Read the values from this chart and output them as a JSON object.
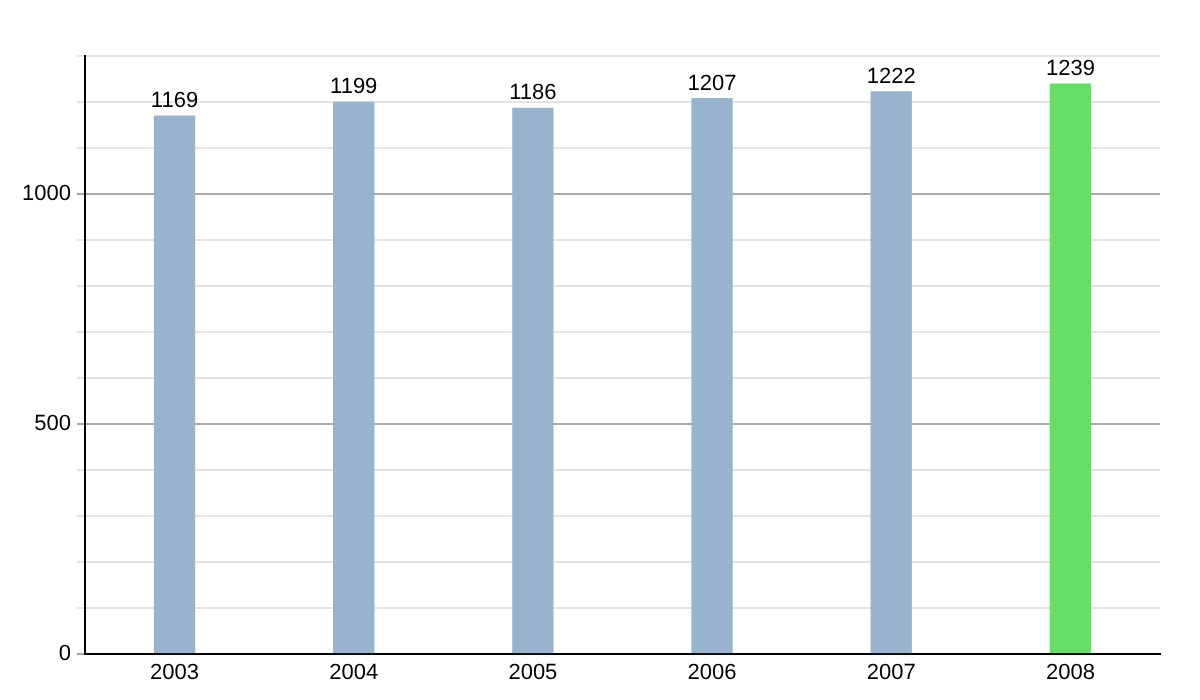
{
  "chart_data": {
    "type": "bar",
    "categories": [
      "2003",
      "2004",
      "2005",
      "2006",
      "2007",
      "2008"
    ],
    "values": [
      1169,
      1199,
      1186,
      1207,
      1222,
      1239
    ],
    "colors": [
      "#9ab3cc",
      "#9ab3cc",
      "#9ab3cc",
      "#9ab3cc",
      "#9ab3cc",
      "#66dd66"
    ],
    "ylim": [
      0,
      1300
    ],
    "yticks": [
      0,
      {
        "value": 100,
        "label": null
      },
      {
        "value": 200,
        "label": null
      },
      {
        "value": 300,
        "label": null
      },
      {
        "value": 400,
        "label": null
      },
      500,
      {
        "value": 600,
        "label": null
      },
      {
        "value": 700,
        "label": null
      },
      {
        "value": 800,
        "label": null
      },
      {
        "value": 900,
        "label": null
      },
      1000,
      {
        "value": 1100,
        "label": null
      },
      {
        "value": 1200,
        "label": null
      },
      {
        "value": 1300,
        "label": null
      }
    ],
    "grid": "y",
    "data_labels": true,
    "legend": false
  }
}
